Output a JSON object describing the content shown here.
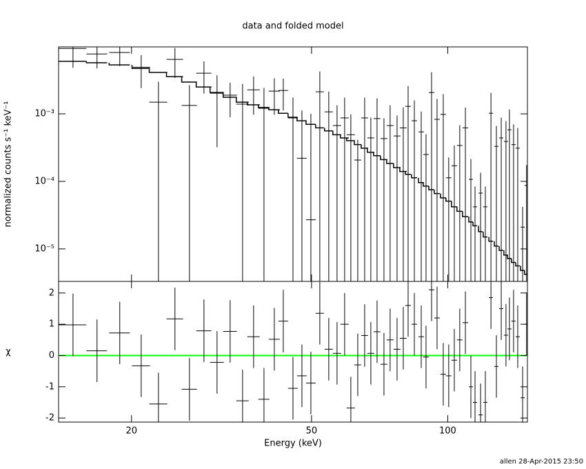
{
  "chart_data": [
    {
      "type": "errorbar",
      "title": "data and folded model",
      "ylabel": "normalized counts s⁻¹ keV⁻¹",
      "xlog": true,
      "ylog": true,
      "xlim": [
        13.8,
        150
      ],
      "ylim": [
        3.3e-06,
        0.0098
      ],
      "yticks": [
        {
          "value": 0.001,
          "label": "10⁻³"
        },
        {
          "value": 0.0001,
          "label": "10⁻⁴"
        },
        {
          "value": 1e-05,
          "label": "10⁻⁵"
        }
      ],
      "color": "#000000",
      "model_color": "#000000",
      "x": [
        14.85,
        16.78,
        18.84,
        21.01,
        22.94,
        24.95,
        26.86,
        28.92,
        30.91,
        33.04,
        35.2,
        37.23,
        39.25,
        41.37,
        43.3,
        45.49,
        47.61,
        49.83,
        52.15,
        54.58,
        56.93,
        59.17,
        61.07,
        63.26,
        65.52,
        67.61,
        69.79,
        72.28,
        74.59,
        77.27,
        79.75,
        81.74,
        84.37,
        87.38,
        89.54,
        92.1,
        94.71,
        97.75,
        100.5,
        103.4,
        106.3,
        109.4,
        112.5,
        114.9,
        118.2,
        121.1,
        124.6,
        128.1,
        131.3,
        134.5,
        136.9,
        139.8,
        142.8,
        146.4,
        149.4
      ],
      "x_err": [
        1.04,
        0.88,
        0.99,
        0.96,
        1.05,
        1.05,
        1.04,
        1.12,
        1.08,
        1.16,
        1.11,
        1.18,
        1.1,
        1.16,
        1.06,
        1.12,
        1.17,
        1.22,
        1.1,
        1.15,
        1.2,
        1.25,
        1.29,
        1.11,
        1.15,
        1.19,
        1.22,
        1.27,
        1.31,
        1.36,
        1.4,
        1.15,
        1.18,
        1.23,
        1.26,
        1.29,
        1.33,
        1.37,
        1.41,
        1.45,
        1.49,
        1.54,
        1.18,
        1.21,
        1.24,
        1.28,
        1.31,
        1.35,
        1.38,
        1.42,
        1.44,
        1.47,
        1.5,
        1.54,
        1.57
      ],
      "y": [
        0.0093,
        0.0077,
        0.0081,
        0.0049,
        0.00149,
        0.0064,
        0.00133,
        0.004,
        0.00202,
        0.00189,
        0.00139,
        0.00227,
        0.00121,
        0.00217,
        0.00222,
        0.00087,
        0.00022,
        2.7e-05,
        0.00212,
        0.00107,
        0.00067,
        0.00087,
        0.00049,
        0.000207,
        0.00087,
        0.00044,
        0.00085,
        0.00043,
        0.00067,
        0.00047,
        0.00062,
        0.00129,
        0.00079,
        0.00054,
        0.00025,
        0.00207,
        0.00083,
        0.00098,
        0.000113,
        0.00017,
        0.00034,
        0.00062,
        0.000107,
        4.2e-05,
        6.7e-05,
        4.2e-05,
        0.00102,
        0.00033,
        0.00044,
        0.00039,
        0.00058,
        0.00035,
        0.00031,
        2.1e-05,
        8.7e-05
      ],
      "y_err": [
        0.0045,
        0.003,
        0.003,
        0.0025,
        0.00149,
        0.003,
        0.00133,
        0.002,
        0.0017,
        0.001,
        0.00139,
        0.0013,
        0.00121,
        0.0012,
        0.0011,
        0.00087,
        0.0009,
        0.00097,
        0.00212,
        0.00107,
        0.00067,
        0.00087,
        0.00049,
        0.000207,
        0.00087,
        0.00044,
        0.00085,
        0.00043,
        0.00067,
        0.00047,
        0.00062,
        0.00129,
        0.00079,
        0.00054,
        0.00025,
        0.00207,
        0.00083,
        0.00098,
        0.000113,
        0.00017,
        0.00034,
        0.00062,
        0.000107,
        4.2e-05,
        6.7e-05,
        4.2e-05,
        0.00102,
        0.00033,
        0.00044,
        0.00039,
        0.00058,
        0.00035,
        0.00031,
        2.1e-05,
        8.7e-05
      ],
      "model": [
        0.006,
        0.0057,
        0.0053,
        0.0047,
        0.0041,
        0.00355,
        0.00295,
        0.0025,
        0.00207,
        0.00176,
        0.00149,
        0.00136,
        0.00124,
        0.00115,
        0.00102,
        0.00089,
        0.00079,
        0.0007,
        0.00062,
        0.00056,
        0.00049,
        0.00044,
        0.0004,
        0.00035,
        0.00031,
        0.00027,
        0.00024,
        0.00021,
        0.000184,
        0.00016,
        0.00014,
        0.000127,
        0.000113,
        9.6e-05,
        8.5e-05,
        7.5e-05,
        6.6e-05,
        5.7e-05,
        5.1e-05,
        4.2e-05,
        3.6e-05,
        3e-05,
        2.5e-05,
        2.2e-05,
        1.8e-05,
        1.5e-05,
        1.3e-05,
        1.1e-05,
        9.5e-06,
        8.1e-06,
        7.2e-06,
        6.3e-06,
        5.6e-06,
        4.8e-06,
        4.2e-06
      ]
    },
    {
      "type": "residual",
      "xlabel": "Energy (keV)",
      "ylabel": "χ",
      "xlog": true,
      "xlim": [
        13.8,
        150
      ],
      "ylim": [
        -2.13,
        2.37
      ],
      "xticks": [
        20,
        50,
        100
      ],
      "yticks": [
        -2,
        -1,
        0,
        1,
        2
      ],
      "color": "#000000",
      "zero_line_color": "#00ff00",
      "x": [
        14.85,
        16.78,
        18.84,
        21.01,
        22.94,
        24.95,
        26.86,
        28.92,
        30.91,
        33.04,
        35.2,
        37.23,
        39.25,
        41.37,
        43.3,
        45.49,
        47.61,
        49.83,
        52.15,
        54.58,
        56.93,
        59.17,
        61.07,
        63.26,
        65.52,
        67.61,
        69.79,
        72.28,
        74.59,
        77.27,
        79.75,
        81.74,
        84.37,
        87.38,
        89.54,
        92.1,
        94.71,
        97.75,
        100.5,
        103.4,
        106.3,
        109.4,
        112.5,
        114.9,
        118.2,
        121.1,
        124.6,
        128.1,
        131.3,
        134.5,
        136.9,
        139.8,
        142.8,
        146.4,
        149.4
      ],
      "x_err": [
        1.04,
        0.88,
        0.99,
        0.96,
        1.05,
        1.05,
        1.04,
        1.12,
        1.08,
        1.16,
        1.11,
        1.18,
        1.1,
        1.16,
        1.06,
        1.12,
        1.17,
        1.22,
        1.1,
        1.15,
        1.2,
        1.25,
        1.29,
        1.11,
        1.15,
        1.19,
        1.22,
        1.27,
        1.31,
        1.36,
        1.4,
        1.15,
        1.18,
        1.23,
        1.26,
        1.29,
        1.33,
        1.37,
        1.41,
        1.45,
        1.49,
        1.54,
        1.18,
        1.21,
        1.24,
        1.28,
        1.31,
        1.35,
        1.38,
        1.42,
        1.44,
        1.47,
        1.5,
        1.54,
        1.57
      ],
      "y": [
        0.98,
        0.15,
        0.72,
        -0.33,
        -1.55,
        1.17,
        -1.08,
        0.79,
        -0.22,
        0.77,
        -1.45,
        0.6,
        -1.4,
        0.52,
        1.1,
        -1.05,
        -0.65,
        -0.88,
        1.35,
        0.2,
        0.07,
        1.0,
        -1.68,
        -0.3,
        0.64,
        0.07,
        0.76,
        -0.28,
        0.5,
        0.2,
        0.55,
        1.6,
        1.0,
        0.6,
        -0.05,
        2.1,
        1.2,
        -0.6,
        -0.65,
        -0.15,
        0.5,
        1.05,
        -1.0,
        -1.5,
        -1.9,
        -1.5,
        1.85,
        -0.35,
        1.5,
        0.65,
        0.85,
        1.1,
        0.6,
        -1.35,
        1.0
      ],
      "y_err": [
        1,
        1,
        1,
        1,
        1,
        1,
        1,
        1,
        1,
        1,
        1,
        1,
        1,
        1,
        1,
        1,
        1,
        1,
        1,
        1,
        1,
        1,
        1,
        1,
        1,
        1,
        1,
        1,
        1,
        1,
        1,
        1,
        1,
        1,
        1,
        1,
        1,
        1,
        1,
        1,
        1,
        1,
        1,
        1,
        1,
        1,
        1,
        1,
        1,
        1,
        1,
        1,
        1,
        1,
        1
      ]
    }
  ],
  "footer": "allen 28-Apr-2015 23:50"
}
